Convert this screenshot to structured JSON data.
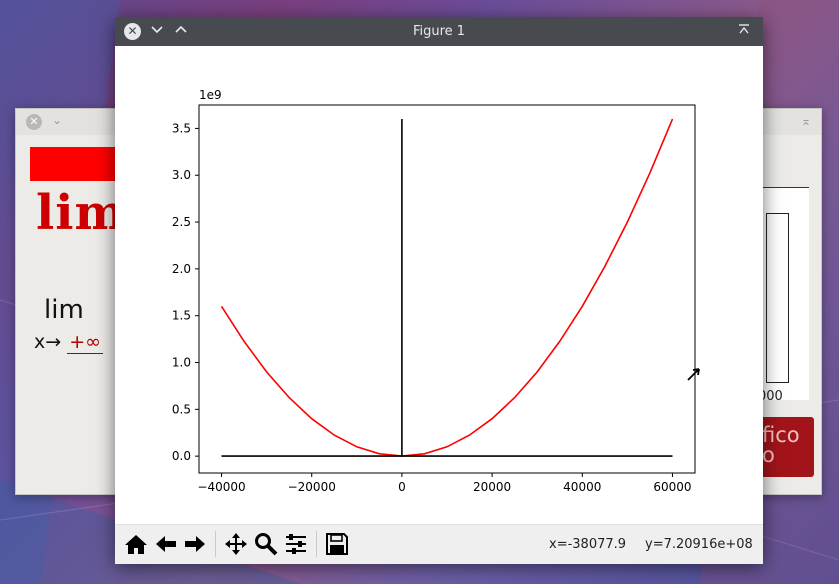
{
  "background_window": {
    "heading": "lim",
    "limit_word": "lim",
    "limit_sub_prefix": "x→",
    "limit_sub_value": "+∞",
    "right_tick": "000",
    "button_text": "fico\no",
    "colors": {
      "accent": "#ff0000",
      "button": "#a3141a",
      "heading": "#cc0000"
    }
  },
  "figure_window": {
    "title": "Figure 1",
    "icons": [
      "close-icon",
      "chevron-down-icon",
      "chevron-up-icon",
      "maximize-icon"
    ],
    "toolbar": {
      "tools": [
        "home-icon",
        "back-arrow-icon",
        "forward-arrow-icon",
        "pan-icon",
        "zoom-icon",
        "configure-subplots-icon",
        "save-icon"
      ],
      "coords_x": "x=-38077.9",
      "coords_y": "y=7.20916e+08"
    }
  },
  "chart_data": {
    "type": "line",
    "title": "",
    "xlabel": "",
    "ylabel": "",
    "offset_label": "1e9",
    "xlim": [
      -45000,
      65000
    ],
    "ylim": [
      -0.18,
      3.75
    ],
    "xticks": [
      -40000,
      -20000,
      0,
      20000,
      40000,
      60000
    ],
    "xtick_labels": [
      "−40000",
      "−20000",
      "0",
      "20000",
      "40000",
      "60000"
    ],
    "yticks": [
      0.0,
      0.5,
      1.0,
      1.5,
      2.0,
      2.5,
      3.0,
      3.5
    ],
    "ytick_labels": [
      "0.0",
      "0.5",
      "1.0",
      "1.5",
      "2.0",
      "2.5",
      "3.0",
      "3.5"
    ],
    "grid": false,
    "series": [
      {
        "color": "#ff0000",
        "x": [
          -40000,
          -35000,
          -30000,
          -25000,
          -20000,
          -15000,
          -10000,
          -5000,
          0,
          5000,
          10000,
          15000,
          20000,
          25000,
          30000,
          35000,
          40000,
          45000,
          50000,
          55000,
          60000
        ],
        "values": [
          1.6,
          1.225,
          0.9,
          0.625,
          0.4,
          0.225,
          0.1,
          0.025,
          0.0,
          0.025,
          0.1,
          0.225,
          0.4,
          0.625,
          0.9,
          1.225,
          1.6,
          2.025,
          2.5,
          3.025,
          3.6
        ]
      },
      {
        "color": "#000000",
        "x": [
          -40000,
          60000
        ],
        "values": [
          0,
          0
        ]
      },
      {
        "color": "#000000",
        "x": [
          0,
          0
        ],
        "values": [
          0,
          3.6
        ]
      }
    ]
  }
}
